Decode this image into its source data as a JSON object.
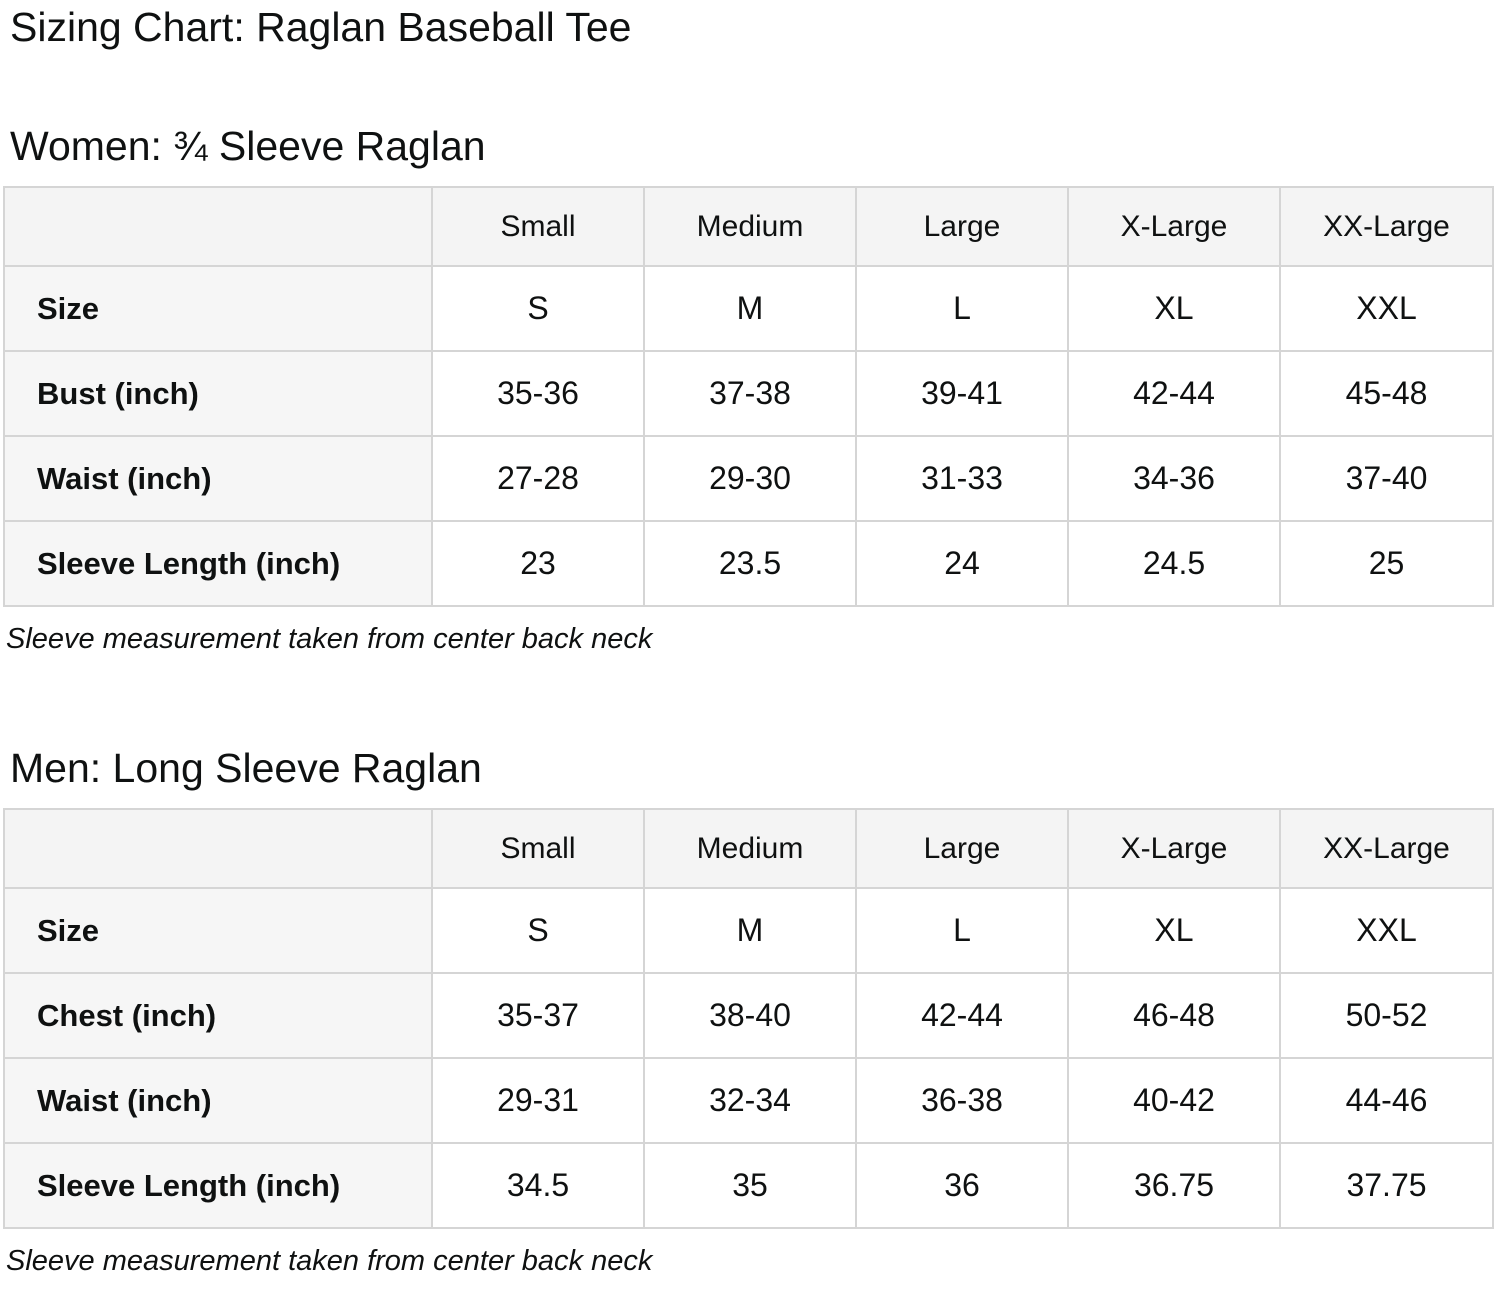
{
  "page": {
    "title": "Sizing Chart: Raglan Baseball Tee"
  },
  "sections": [
    {
      "heading": "Women: ¾ Sleeve Raglan",
      "note": "Sleeve measurement taken from center back neck",
      "table": {
        "columns": [
          "",
          "Small",
          "Medium",
          "Large",
          "X-Large",
          "XX-Large"
        ],
        "rows": [
          {
            "label": "Size",
            "values": [
              "S",
              "M",
              "L",
              "XL",
              "XXL"
            ]
          },
          {
            "label": "Bust (inch)",
            "values": [
              "35-36",
              "37-38",
              "39-41",
              "42-44",
              "45-48"
            ]
          },
          {
            "label": "Waist (inch)",
            "values": [
              "27-28",
              "29-30",
              "31-33",
              "34-36",
              "37-40"
            ]
          },
          {
            "label": "Sleeve Length (inch)",
            "values": [
              "23",
              "23.5",
              "24",
              "24.5",
              "25"
            ]
          }
        ]
      }
    },
    {
      "heading": "Men: Long Sleeve Raglan",
      "note": "Sleeve measurement taken from center back neck",
      "table": {
        "columns": [
          "",
          "Small",
          "Medium",
          "Large",
          "X-Large",
          "XX-Large"
        ],
        "rows": [
          {
            "label": "Size",
            "values": [
              "S",
              "M",
              "L",
              "XL",
              "XXL"
            ]
          },
          {
            "label": "Chest (inch)",
            "values": [
              "35-37",
              "38-40",
              "42-44",
              "46-48",
              "50-52"
            ]
          },
          {
            "label": "Waist (inch)",
            "values": [
              "29-31",
              "32-34",
              "36-38",
              "40-42",
              "44-46"
            ]
          },
          {
            "label": "Sleeve Length (inch)",
            "values": [
              "34.5",
              "35",
              "36",
              "36.75",
              "37.75"
            ]
          }
        ]
      }
    }
  ]
}
